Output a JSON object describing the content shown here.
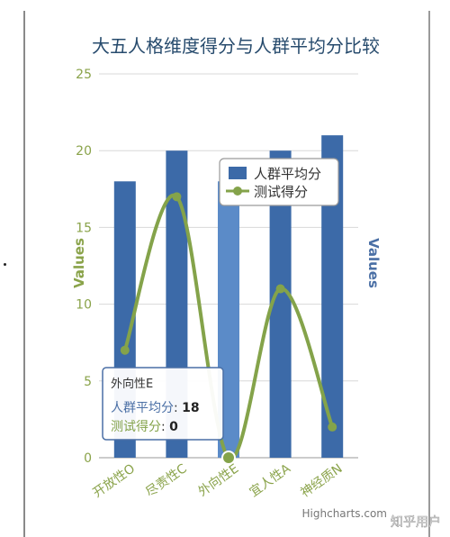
{
  "chart_data": {
    "type": "bar+line",
    "title": "大五人格维度得分与人群平均分比较",
    "categories": [
      "开放性O",
      "尽责性C",
      "外向性E",
      "宜人性A",
      "神经质N"
    ],
    "series": [
      {
        "name": "人群平均分",
        "type": "bar",
        "values": [
          18,
          20,
          18,
          20,
          21
        ]
      },
      {
        "name": "测试得分",
        "type": "line",
        "values": [
          7,
          17,
          0,
          11,
          2
        ]
      }
    ],
    "ylabel_left": "Values",
    "ylabel_right": "Values",
    "ylim": [
      0,
      25
    ],
    "yticks": [
      0,
      5,
      10,
      15,
      20,
      25
    ],
    "grid": true,
    "legend_position": "top-right",
    "highlighted_category_index": 2,
    "tooltip": {
      "category": "外向性E",
      "rows": [
        {
          "label": "人群平均分",
          "value": "18"
        },
        {
          "label": "测试得分",
          "value": "0"
        }
      ]
    },
    "credits": "Highcharts.com",
    "colors": {
      "bar": "#3c6aa8",
      "bar_highlight": "#5b8bc8",
      "line": "#84a34a",
      "axis_text": "#8aa34a",
      "right_axis_text": "#4a6fa5",
      "title": "#274b6d",
      "grid": "#d8d8d8"
    }
  },
  "watermark": "知乎用户"
}
